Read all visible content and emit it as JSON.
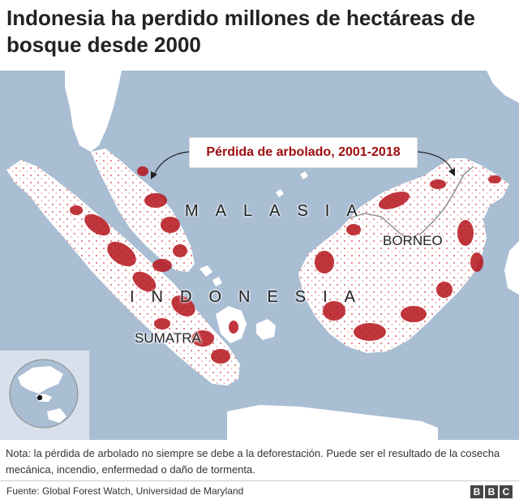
{
  "title": "Indonesia ha perdido millones de hectáreas de bosque desde 2000",
  "map": {
    "callout": "Pérdida de arbolado, 2001-2018",
    "country_labels": [
      "MALASIA",
      "INDONESIA"
    ],
    "region_labels": [
      "BORNEO",
      "SUMATRA"
    ],
    "colors": {
      "sea": "#a9bdd3",
      "land": "#ffffff",
      "loss": "#b5121b",
      "border": "#888888"
    }
  },
  "note": "Nota: la pérdida de arbolado no siempre se debe a la deforestación. Puede ser el resultado de la cosecha mecánica, incendio, enfermedad o daño de tormenta.",
  "source": "Fuente: Global Forest Watch, Universidad de Maryland",
  "logo": [
    "B",
    "B",
    "C"
  ]
}
